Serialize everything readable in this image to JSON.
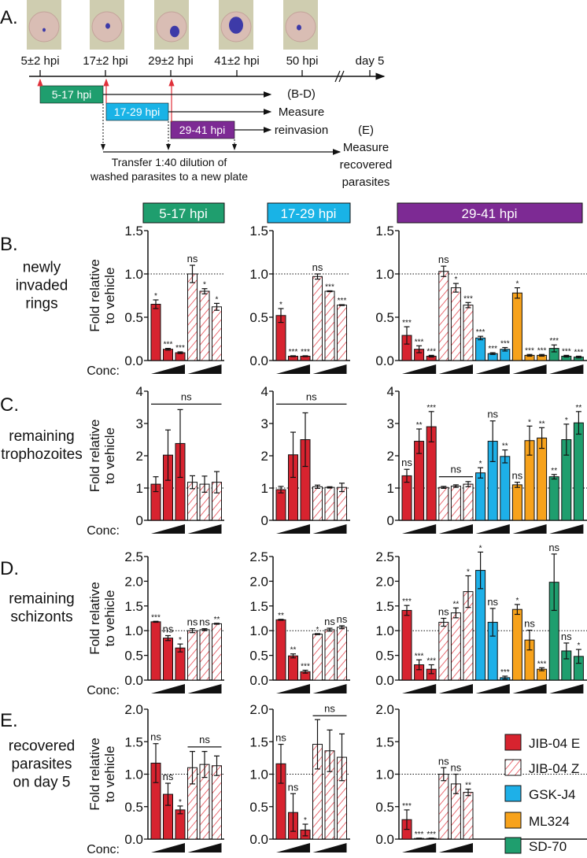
{
  "panel_letters": {
    "a": "A.",
    "b": "B.",
    "c": "C.",
    "d": "D.",
    "e": "E."
  },
  "timeline": {
    "timepoints": [
      "5±2 hpi",
      "17±2 hpi",
      "29±2 hpi",
      "41±2 hpi",
      "50 hpi",
      "day 5"
    ],
    "windows": [
      {
        "label": "5-17 hpi",
        "color": "#1f9e6e"
      },
      {
        "label": "17-29 hpi",
        "color": "#19b3e6"
      },
      {
        "label": "29-41 hpi",
        "color": "#7d2a94"
      }
    ],
    "measure_reinvasion": [
      "(B-D)",
      "Measure",
      "reinvasion"
    ],
    "measure_recovered": [
      "(E)",
      "Measure",
      "recovered",
      "parasites"
    ],
    "transfer_note": [
      "Transfer 1:40 dilution of",
      "washed parasites to a new plate"
    ],
    "arrow_color": "#e0303a"
  },
  "figure": {
    "columns": [
      {
        "label": "5-17 hpi",
        "color": "#1f9e6e"
      },
      {
        "label": "17-29 hpi",
        "color": "#19b3e6"
      },
      {
        "label": "29-41 hpi",
        "color": "#7d2a94"
      }
    ],
    "rows": [
      {
        "label": [
          "newly",
          "invaded",
          "rings"
        ]
      },
      {
        "label": [
          "remaining",
          "trophozoites"
        ]
      },
      {
        "label": [
          "remaining",
          "schizonts"
        ]
      },
      {
        "label": [
          "recovered",
          "parasites",
          "on day 5"
        ]
      }
    ],
    "ylabel": [
      "Fold relative",
      "to vehicle"
    ],
    "conc_label": "Conc:"
  },
  "legend": [
    {
      "name": "JIB-04 E",
      "color": "#d7232f",
      "pattern": "solid"
    },
    {
      "name": "JIB-04 Z",
      "color": "#d7232f",
      "pattern": "hatched"
    },
    {
      "name": "GSK-J4",
      "color": "#1eb0e8",
      "pattern": "solid"
    },
    {
      "name": "ML324",
      "color": "#f7a21b",
      "pattern": "solid"
    },
    {
      "name": "SD-70",
      "color": "#1f9e6e",
      "pattern": "solid"
    }
  ],
  "chart_data": [
    {
      "type": "bar",
      "panel": "B",
      "column": "5-17 hpi",
      "ylabel": "Fold relative to vehicle",
      "ylim": [
        0,
        1.5
      ],
      "yticks": [
        "0.0",
        "0.5",
        "1.0",
        "1.5"
      ],
      "reference_line": 1,
      "series": [
        {
          "name": "JIB-04 E",
          "values": [
            0.65,
            0.13,
            0.09
          ],
          "errors": [
            0.05,
            0.01,
            0.01
          ],
          "significance": [
            "*",
            "***",
            "***"
          ]
        },
        {
          "name": "JIB-04 Z",
          "values": [
            1.0,
            0.8,
            0.62
          ],
          "errors": [
            0.1,
            0.03,
            0.04
          ],
          "significance": [
            "ns",
            "*",
            "*"
          ]
        }
      ]
    },
    {
      "type": "bar",
      "panel": "B",
      "column": "17-29 hpi",
      "ylabel": "Fold relative to vehicle",
      "ylim": [
        0,
        1.5
      ],
      "yticks": [
        "0.0",
        "0.5",
        "1.0",
        "1.5"
      ],
      "reference_line": 1,
      "series": [
        {
          "name": "JIB-04 E",
          "values": [
            0.52,
            0.05,
            0.05
          ],
          "errors": [
            0.08,
            0.005,
            0.005
          ],
          "significance": [
            "*",
            "***",
            "***"
          ]
        },
        {
          "name": "JIB-04 Z",
          "values": [
            0.97,
            0.8,
            0.64
          ],
          "errors": [
            0.03,
            0.005,
            0.005
          ],
          "significance": [
            "ns",
            "***",
            "***"
          ]
        }
      ]
    },
    {
      "type": "bar",
      "panel": "B",
      "column": "29-41 hpi",
      "ylabel": "Fold relative to vehicle",
      "ylim": [
        0,
        1.5
      ],
      "yticks": [
        "0.0",
        "0.5",
        "1.0",
        "1.5"
      ],
      "reference_line": 1,
      "series": [
        {
          "name": "JIB-04 E",
          "values": [
            0.29,
            0.13,
            0.05
          ],
          "errors": [
            0.1,
            0.04,
            0.01
          ],
          "significance": [
            "***",
            "***",
            "***"
          ]
        },
        {
          "name": "JIB-04 Z",
          "values": [
            1.03,
            0.84,
            0.64
          ],
          "errors": [
            0.06,
            0.05,
            0.03
          ],
          "significance": [
            "ns",
            "*",
            "***"
          ]
        },
        {
          "name": "GSK-J4",
          "values": [
            0.26,
            0.08,
            0.13
          ],
          "errors": [
            0.02,
            0.01,
            0.02
          ],
          "significance": [
            "***",
            "***",
            "***"
          ]
        },
        {
          "name": "ML324",
          "values": [
            0.78,
            0.06,
            0.06
          ],
          "errors": [
            0.06,
            0.01,
            0.01
          ],
          "significance": [
            "*",
            "***",
            "***"
          ]
        },
        {
          "name": "SD-70",
          "values": [
            0.14,
            0.05,
            0.04
          ],
          "errors": [
            0.04,
            0.01,
            0.01
          ],
          "significance": [
            "***",
            "***",
            "***"
          ]
        }
      ]
    },
    {
      "type": "bar",
      "panel": "C",
      "column": "5-17 hpi",
      "ylabel": "Fold relative to vehicle",
      "ylim": [
        0,
        4
      ],
      "yticks": [
        "0",
        "1",
        "2",
        "3",
        "4"
      ],
      "reference_line": 1,
      "brackets": [
        {
          "series": [
            "JIB-04 E",
            "JIB-04 Z"
          ],
          "at": 3.6,
          "label": "ns"
        }
      ],
      "series": [
        {
          "name": "JIB-04 E",
          "values": [
            1.12,
            2.02,
            2.38
          ],
          "errors": [
            0.23,
            0.78,
            1.05
          ],
          "significance": [
            "",
            "",
            ""
          ]
        },
        {
          "name": "JIB-04 Z",
          "values": [
            1.18,
            1.12,
            1.18
          ],
          "errors": [
            0.2,
            0.25,
            0.33
          ],
          "significance": [
            "",
            "",
            ""
          ]
        }
      ]
    },
    {
      "type": "bar",
      "panel": "C",
      "column": "17-29 hpi",
      "ylabel": "Fold relative to vehicle",
      "ylim": [
        0,
        4
      ],
      "yticks": [
        "0",
        "1",
        "2",
        "3",
        "4"
      ],
      "reference_line": 1,
      "brackets": [
        {
          "series": [
            "JIB-04 E",
            "JIB-04 Z"
          ],
          "at": 3.6,
          "label": "ns"
        }
      ],
      "series": [
        {
          "name": "JIB-04 E",
          "values": [
            0.95,
            2.03,
            2.5
          ],
          "errors": [
            0.1,
            0.7,
            0.83
          ],
          "significance": [
            "",
            "",
            ""
          ]
        },
        {
          "name": "JIB-04 Z",
          "values": [
            1.04,
            1.02,
            1.02
          ],
          "errors": [
            0.05,
            0.02,
            0.13
          ],
          "significance": [
            "",
            "",
            ""
          ]
        }
      ]
    },
    {
      "type": "bar",
      "panel": "C",
      "column": "29-41 hpi",
      "ylabel": "Fold relative to vehicle",
      "ylim": [
        0,
        4
      ],
      "yticks": [
        "0",
        "1",
        "2",
        "3",
        "4"
      ],
      "reference_line": 1,
      "brackets": [
        {
          "series": [
            "JIB-04 Z"
          ],
          "at": 1.35,
          "label": "ns"
        }
      ],
      "series": [
        {
          "name": "JIB-04 E",
          "values": [
            1.38,
            2.45,
            2.9
          ],
          "errors": [
            0.2,
            0.38,
            0.47
          ],
          "significance": [
            "ns",
            "**",
            "***"
          ]
        },
        {
          "name": "JIB-04 Z",
          "values": [
            1.02,
            1.06,
            1.12
          ],
          "errors": [
            0.03,
            0.04,
            0.08
          ],
          "significance": [
            "",
            "",
            ""
          ]
        },
        {
          "name": "GSK-J4",
          "values": [
            1.47,
            2.45,
            1.98
          ],
          "errors": [
            0.16,
            0.63,
            0.2
          ],
          "significance": [
            "*",
            "ns",
            "**"
          ]
        },
        {
          "name": "ML324",
          "values": [
            1.1,
            2.47,
            2.55
          ],
          "errors": [
            0.08,
            0.45,
            0.32
          ],
          "significance": [
            "ns",
            "*",
            "**"
          ]
        },
        {
          "name": "SD-70",
          "values": [
            1.35,
            2.5,
            3.02
          ],
          "errors": [
            0.07,
            0.48,
            0.35
          ],
          "significance": [
            "**",
            "*",
            "**"
          ]
        }
      ]
    },
    {
      "type": "bar",
      "panel": "D",
      "column": "5-17 hpi",
      "ylabel": "Fold relative to vehicle",
      "ylim": [
        0,
        2.5
      ],
      "yticks": [
        "0.0",
        "0.5",
        "1.0",
        "1.5",
        "2.0",
        "2.5"
      ],
      "reference_line": 1,
      "series": [
        {
          "name": "JIB-04 E",
          "values": [
            1.18,
            0.85,
            0.65
          ],
          "errors": [
            0.01,
            0.05,
            0.08
          ],
          "significance": [
            "***",
            "ns",
            "*"
          ]
        },
        {
          "name": "JIB-04 Z",
          "values": [
            1.0,
            1.02,
            1.14
          ],
          "errors": [
            0.04,
            0.02,
            0.01
          ],
          "significance": [
            "ns",
            "ns",
            "**"
          ]
        }
      ]
    },
    {
      "type": "bar",
      "panel": "D",
      "column": "17-29 hpi",
      "ylabel": "Fold relative to vehicle",
      "ylim": [
        0,
        2.5
      ],
      "yticks": [
        "0.0",
        "0.5",
        "1.0",
        "1.5",
        "2.0",
        "2.5"
      ],
      "reference_line": 1,
      "series": [
        {
          "name": "JIB-04 E",
          "values": [
            1.22,
            0.49,
            0.17
          ],
          "errors": [
            0.01,
            0.04,
            0.03
          ],
          "significance": [
            "**",
            "**",
            "***"
          ]
        },
        {
          "name": "JIB-04 Z",
          "values": [
            0.93,
            1.02,
            1.07
          ],
          "errors": [
            0.01,
            0.03,
            0.03
          ],
          "significance": [
            "*",
            "ns",
            "ns"
          ]
        }
      ]
    },
    {
      "type": "bar",
      "panel": "D",
      "column": "29-41 hpi",
      "ylabel": "Fold relative to vehicle",
      "ylim": [
        0,
        2.5
      ],
      "yticks": [
        "0.0",
        "0.5",
        "1.0",
        "1.5",
        "2.0",
        "2.5"
      ],
      "reference_line": 1,
      "series": [
        {
          "name": "JIB-04 E",
          "values": [
            1.41,
            0.31,
            0.22
          ],
          "errors": [
            0.1,
            0.1,
            0.09
          ],
          "significance": [
            "***",
            "***",
            "***"
          ]
        },
        {
          "name": "JIB-04 Z",
          "values": [
            1.17,
            1.36,
            1.79
          ],
          "errors": [
            0.08,
            0.1,
            0.32
          ],
          "significance": [
            "ns",
            "**",
            "*"
          ]
        },
        {
          "name": "GSK-J4",
          "values": [
            2.22,
            1.17,
            0.05
          ],
          "errors": [
            0.37,
            0.28,
            0.03
          ],
          "significance": [
            "*",
            "ns",
            "***"
          ]
        },
        {
          "name": "ML324",
          "values": [
            1.43,
            0.81,
            0.22
          ],
          "errors": [
            0.1,
            0.2,
            0.03
          ],
          "significance": [
            "*",
            "ns",
            "***"
          ]
        },
        {
          "name": "SD-70",
          "values": [
            1.98,
            0.59,
            0.48
          ],
          "errors": [
            0.57,
            0.16,
            0.14
          ],
          "significance": [
            "ns",
            "ns",
            "*"
          ]
        }
      ]
    },
    {
      "type": "bar",
      "panel": "E",
      "column": "5-17 hpi",
      "ylabel": "Fold relative to vehicle",
      "ylim": [
        0,
        2
      ],
      "yticks": [
        "0.0",
        "0.5",
        "1.0",
        "1.5",
        "2.0"
      ],
      "reference_line": 1,
      "brackets": [
        {
          "series": [
            "JIB-04 Z"
          ],
          "at": 1.42,
          "label": "ns"
        }
      ],
      "series": [
        {
          "name": "JIB-04 E",
          "values": [
            1.17,
            0.69,
            0.45
          ],
          "errors": [
            0.3,
            0.17,
            0.06
          ],
          "significance": [
            "ns",
            "ns",
            "*"
          ]
        },
        {
          "name": "JIB-04 Z",
          "values": [
            1.1,
            1.15,
            1.13
          ],
          "errors": [
            0.25,
            0.2,
            0.15
          ],
          "significance": [
            "",
            "",
            ""
          ]
        }
      ]
    },
    {
      "type": "bar",
      "panel": "E",
      "column": "17-29 hpi",
      "ylabel": "Fold relative to vehicle",
      "ylim": [
        0,
        2
      ],
      "yticks": [
        "0.0",
        "0.5",
        "1.0",
        "1.5",
        "2.0"
      ],
      "reference_line": 1,
      "brackets": [
        {
          "series": [
            "JIB-04 Z"
          ],
          "at": 1.9,
          "label": "ns"
        }
      ],
      "series": [
        {
          "name": "JIB-04 E",
          "values": [
            1.16,
            0.41,
            0.14
          ],
          "errors": [
            0.3,
            0.29,
            0.09
          ],
          "significance": [
            "ns",
            "ns",
            "*"
          ]
        },
        {
          "name": "JIB-04 Z",
          "values": [
            1.46,
            1.36,
            1.26
          ],
          "errors": [
            0.38,
            0.32,
            0.36
          ],
          "significance": [
            "",
            "",
            ""
          ]
        }
      ]
    },
    {
      "type": "bar",
      "panel": "E",
      "column": "29-41 hpi",
      "ylabel": "Fold relative to vehicle",
      "ylim": [
        0,
        2
      ],
      "yticks": [
        "0.0",
        "0.5",
        "1.0",
        "1.5",
        "2.0"
      ],
      "reference_line": 1,
      "series": [
        {
          "name": "JIB-04 E",
          "values": [
            0.3,
            0.01,
            0.01
          ],
          "errors": [
            0.15,
            0.005,
            0.005
          ],
          "significance": [
            "***",
            "***",
            "***"
          ]
        },
        {
          "name": "JIB-04 Z",
          "values": [
            1.0,
            0.85,
            0.72
          ],
          "errors": [
            0.1,
            0.15,
            0.05
          ],
          "significance": [
            "ns",
            "ns",
            "**"
          ]
        }
      ]
    }
  ]
}
